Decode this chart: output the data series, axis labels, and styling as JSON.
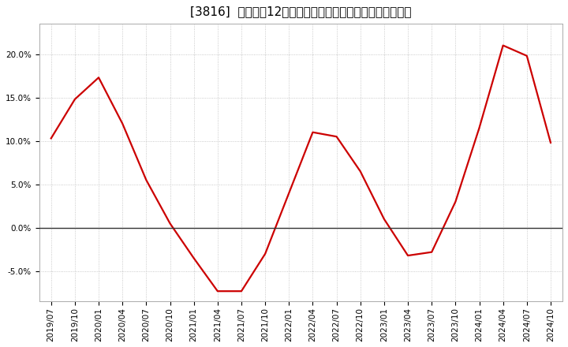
{
  "title": "[3816]  売上高の12か月移動合計の対前年同期増減率の推移",
  "x_labels": [
    "2019/07",
    "2019/10",
    "2020/01",
    "2020/04",
    "2020/07",
    "2020/10",
    "2021/01",
    "2021/04",
    "2021/07",
    "2021/10",
    "2022/01",
    "2022/04",
    "2022/07",
    "2022/10",
    "2023/01",
    "2023/04",
    "2023/07",
    "2023/10",
    "2024/01",
    "2024/04",
    "2024/07",
    "2024/10"
  ],
  "y_values": [
    0.103,
    0.148,
    0.173,
    0.12,
    0.055,
    0.005,
    -0.035,
    -0.073,
    -0.073,
    -0.03,
    0.04,
    0.11,
    0.105,
    0.065,
    0.01,
    -0.032,
    -0.028,
    0.03,
    0.115,
    0.21,
    0.198,
    0.098
  ],
  "line_color": "#cc0000",
  "background_color": "#ffffff",
  "grid_color": "#bbbbbb",
  "ylim": [
    -0.085,
    0.235
  ],
  "yticks": [
    -0.05,
    0.0,
    0.05,
    0.1,
    0.15,
    0.2
  ],
  "title_fontsize": 11,
  "tick_fontsize": 7.5,
  "line_width": 1.6
}
